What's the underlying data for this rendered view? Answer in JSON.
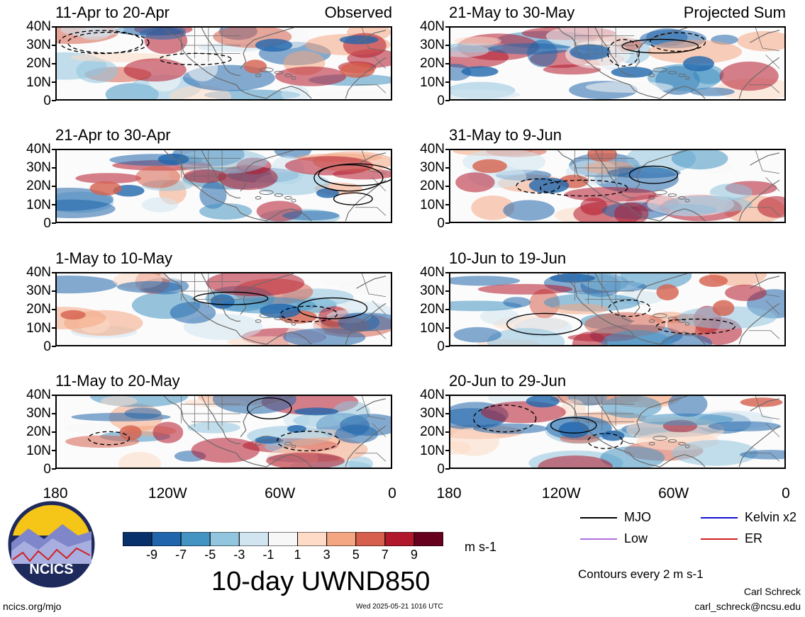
{
  "panels": [
    {
      "label": "11-Apr to 20-Apr",
      "corner": "Observed"
    },
    {
      "label": "21-Apr to 30-Apr",
      "corner": ""
    },
    {
      "label": "1-May to 10-May",
      "corner": ""
    },
    {
      "label": "11-May to 20-May",
      "corner": ""
    },
    {
      "label": "21-May to 30-May",
      "corner": "Projected Sum"
    },
    {
      "label": "31-May to 9-Jun",
      "corner": ""
    },
    {
      "label": "10-Jun to 19-Jun",
      "corner": ""
    },
    {
      "label": "20-Jun to 29-Jun",
      "corner": ""
    }
  ],
  "lat_labels": [
    "40N",
    "30N",
    "20N",
    "10N",
    "0"
  ],
  "lon_labels": [
    "180",
    "120W",
    "60W",
    "0"
  ],
  "colorbar": {
    "ticks": [
      "-9",
      "-7",
      "-5",
      "-3",
      "-1",
      "1",
      "3",
      "5",
      "7",
      "9"
    ],
    "colors": [
      "#08306b",
      "#2166ac",
      "#4393c3",
      "#92c5de",
      "#d1e5f0",
      "#f7f7f7",
      "#fddbc7",
      "#f4a582",
      "#d6604d",
      "#b2182b",
      "#67001f"
    ],
    "units": "m s-1"
  },
  "title": "10-day UWND850",
  "legend": {
    "items": [
      {
        "name": "MJO",
        "color": "#000000"
      },
      {
        "name": "Kelvin x2",
        "color": "#1010d0"
      },
      {
        "name": "Low",
        "color": "#b070e0"
      },
      {
        "name": "ER",
        "color": "#d02020"
      }
    ],
    "contour_note": "Contours every 2 m s-1"
  },
  "logo": {
    "text": "NCICS"
  },
  "footer": {
    "url": "ncics.org/mjo",
    "timestamp": "Wed 2025-05-21 1016 UTC",
    "author": "Carl Schreck",
    "email": "carl_schreck@ncsu.edu"
  }
}
